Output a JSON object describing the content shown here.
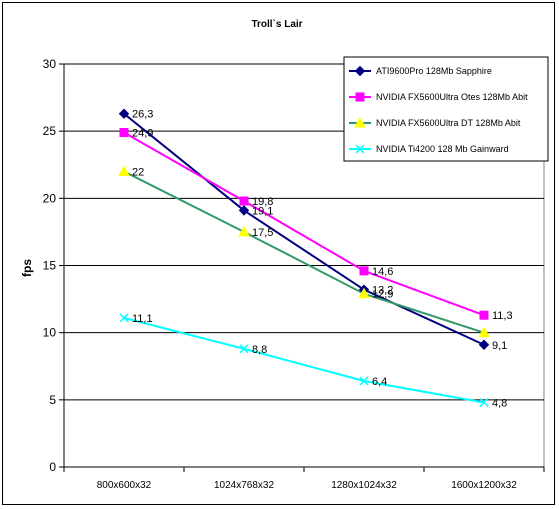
{
  "chart_data": {
    "type": "line",
    "title": "Troll`s Lair",
    "xlabel": "",
    "ylabel": "fps",
    "ylim": [
      0,
      30
    ],
    "yticks": [
      0,
      5,
      10,
      15,
      20,
      25,
      30
    ],
    "grid": "horizontal",
    "legend_position": "top-right",
    "categories": [
      "800x600x32",
      "1024x768x32",
      "1280x1024x32",
      "1600x1200x32"
    ],
    "series": [
      {
        "name": "ATI9600Pro 128Mb Sapphire",
        "color": "#000080",
        "marker": "diamond",
        "values": [
          26.3,
          19.1,
          13.2,
          9.1
        ],
        "labels": [
          "26,3",
          "19,1",
          "13,2",
          "9,1"
        ]
      },
      {
        "name": "NVIDIA FX5600Ultra Otes 128Mb Abit",
        "color": "#ff00ff",
        "marker": "square",
        "values": [
          24.9,
          19.8,
          14.6,
          11.3
        ],
        "labels": [
          "24,9",
          "19,8",
          "14,6",
          "11,3"
        ]
      },
      {
        "name": "NVIDIA FX5600Ultra DT 128Mb Abit",
        "color": "#339966",
        "marker": "triangle",
        "marker_color": "#ffff00",
        "values": [
          22,
          17.5,
          12.9,
          10.0
        ],
        "labels": [
          "22",
          "17,5",
          "12,9",
          ""
        ]
      },
      {
        "name": "NVIDIA Ti4200 128 Mb Gainward",
        "color": "#00ffff",
        "marker": "x",
        "values": [
          11.1,
          8.8,
          6.4,
          4.8
        ],
        "labels": [
          "11,1",
          "8,8",
          "6,4",
          "4,8"
        ]
      }
    ]
  }
}
